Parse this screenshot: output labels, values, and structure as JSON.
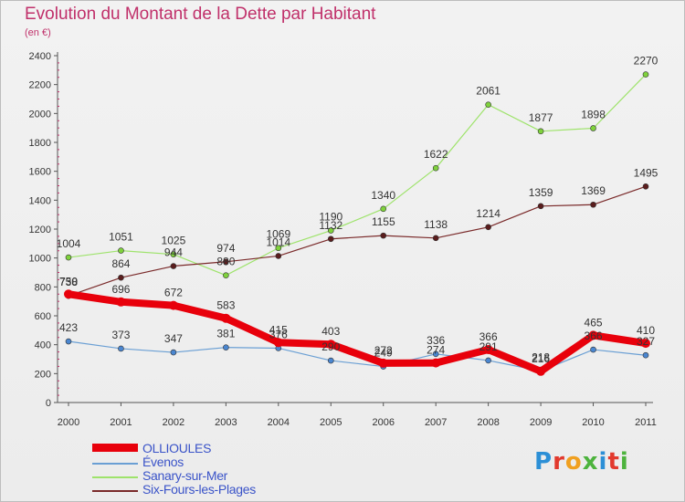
{
  "title": "Evolution du Montant de la Dette par Habitant",
  "unit_label": "(en €)",
  "logo": {
    "text": "Proxiti",
    "colors": [
      "#2c8fd6",
      "#e2392d",
      "#f0a020",
      "#4db33d",
      "#2c8fd6",
      "#e2392d",
      "#4db33d"
    ]
  },
  "chart_data": {
    "type": "line",
    "title": "Evolution du Montant de la Dette par Habitant",
    "ylabel": "(en €)",
    "x": [
      "2000",
      "2001",
      "2002",
      "2003",
      "2004",
      "2005",
      "2006",
      "2007",
      "2008",
      "2009",
      "2010",
      "2011"
    ],
    "ylim": [
      0,
      2400
    ],
    "yticks": [
      0,
      200,
      400,
      600,
      800,
      1000,
      1200,
      1400,
      1600,
      1800,
      2000,
      2200,
      2400
    ],
    "grid": false,
    "legend_position": "bottom-left",
    "series": [
      {
        "name": "OLLIOULES",
        "color": "#e8000b",
        "values": [
          750,
          696,
          672,
          583,
          415,
          403,
          272,
          274,
          366,
          216,
          465,
          410
        ],
        "labels": [
          "750",
          "696",
          "672",
          "583",
          "415",
          "403",
          "272",
          "274",
          "366",
          "216",
          "465",
          "410"
        ]
      },
      {
        "name": "Évenos",
        "color": "#6a9fd4",
        "values": [
          423,
          373,
          347,
          381,
          376,
          290,
          249,
          336,
          291,
          218,
          366,
          327
        ],
        "labels": [
          "423",
          "373",
          "347",
          "381",
          "376",
          "290",
          "249",
          "336",
          "291",
          "218",
          "366",
          "327"
        ]
      },
      {
        "name": "Sanary-sur-Mer",
        "color": "#9ee36b",
        "values": [
          1004,
          1051,
          1025,
          880,
          1069,
          1190,
          1340,
          1622,
          2061,
          1877,
          1898,
          2270
        ],
        "labels": [
          "1004",
          "1051",
          "1025",
          "880",
          "1069",
          "1190",
          "1340",
          "1622",
          "2061",
          "1877",
          "1898",
          "2270"
        ]
      },
      {
        "name": "Six-Fours-les-Plages",
        "color": "#7a2a2a",
        "values": [
          738,
          864,
          944,
          974,
          1014,
          1132,
          1155,
          1138,
          1214,
          1359,
          1369,
          1495
        ],
        "labels": [
          "738",
          "864",
          "944",
          "974",
          "1014",
          "1132",
          "1155",
          "1138",
          "1214",
          "1359",
          "1369",
          "1495"
        ]
      }
    ]
  }
}
